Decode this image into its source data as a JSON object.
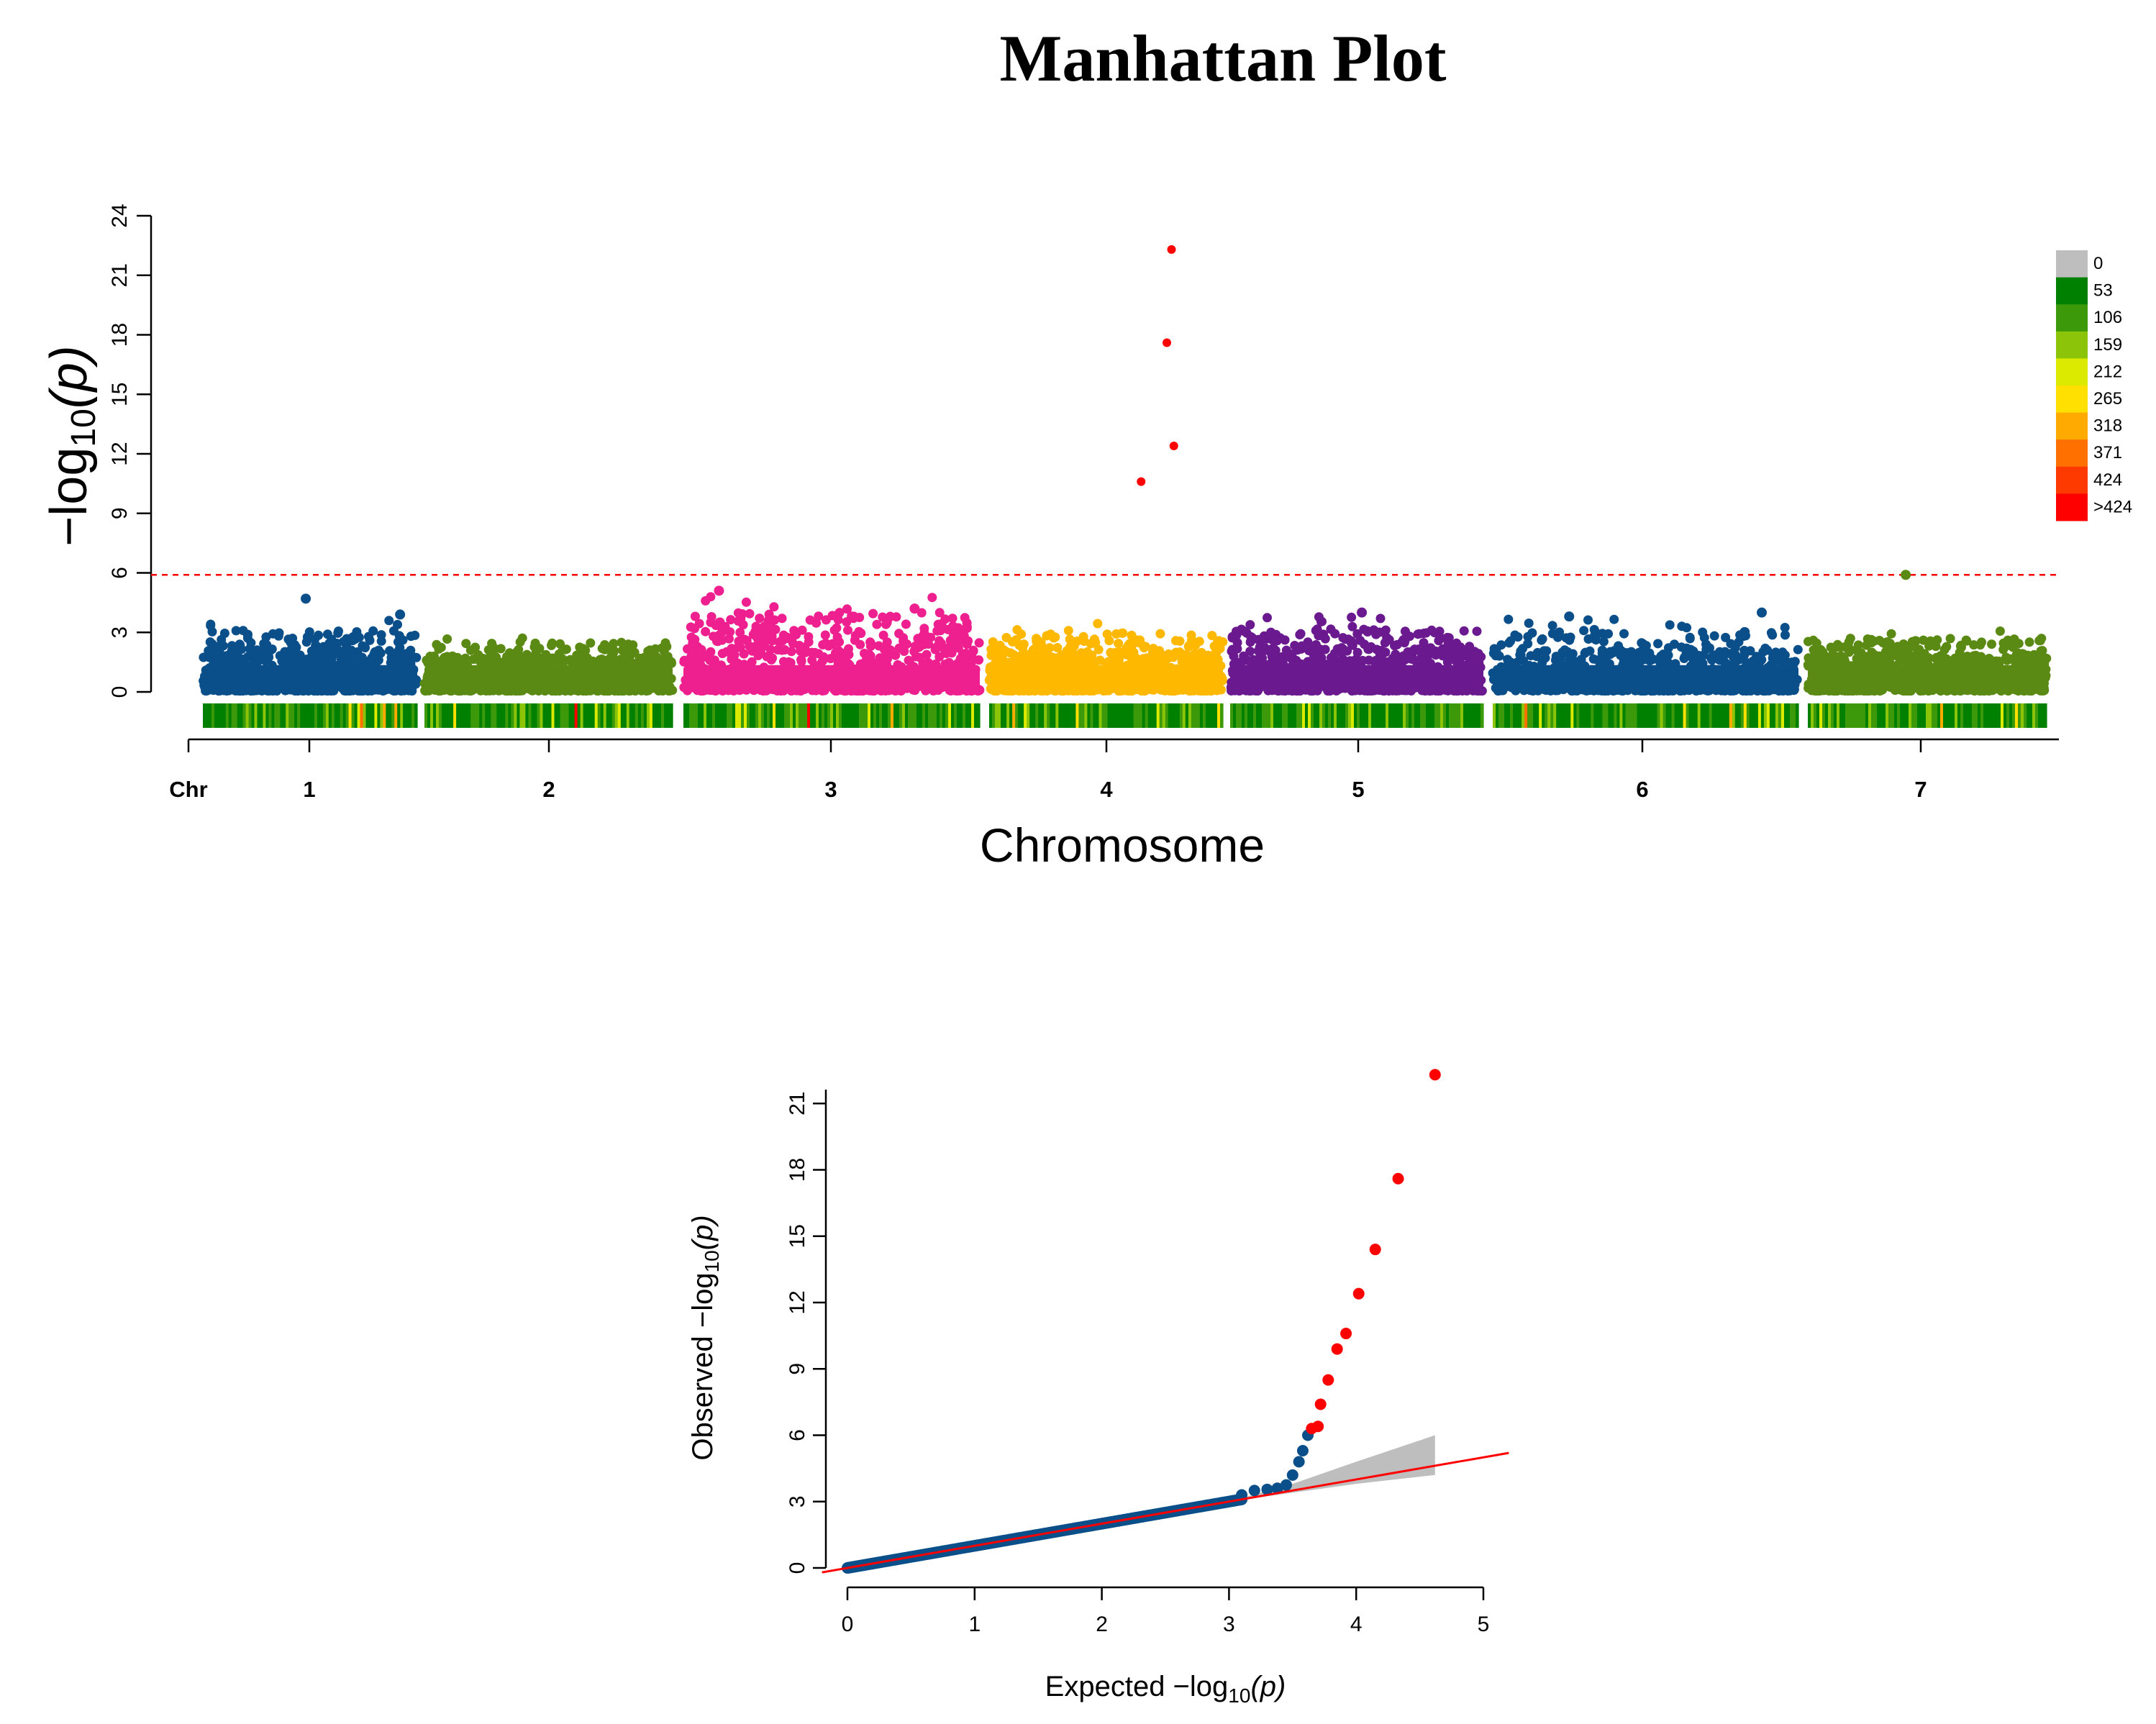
{
  "chart_data": [
    {
      "type": "scatter",
      "subtype": "manhattan",
      "title": "Manhattan Plot",
      "xlabel": "Chromosome",
      "ylabel_parts": {
        "prefix": "−log",
        "sub": "10",
        "suffix": "(p)"
      },
      "chr_label": "Chr",
      "ylim": [
        0,
        24
      ],
      "yticks": [
        0,
        3,
        6,
        9,
        12,
        15,
        18,
        21,
        24
      ],
      "threshold": 5.9,
      "threshold_color": "#ff0000",
      "chromosomes": [
        {
          "name": "1",
          "color": "#0b4f8a",
          "max_background": 3.9
        },
        {
          "name": "2",
          "color": "#5a8a14",
          "max_background": 3.1
        },
        {
          "name": "3",
          "color": "#ee1f8e",
          "max_background": 5.1
        },
        {
          "name": "4",
          "color": "#ffb800",
          "max_background": 3.7
        },
        {
          "name": "5",
          "color": "#6a1a8e",
          "max_background": 4.0
        },
        {
          "name": "6",
          "color": "#0b4f8a",
          "max_background": 3.9
        },
        {
          "name": "7",
          "color": "#5a8a14",
          "max_background": 3.4
        }
      ],
      "peaks": [
        {
          "chr": "1",
          "pos": 0.48,
          "value": 4.7
        },
        {
          "chr": "1",
          "pos": 0.92,
          "value": 3.9
        },
        {
          "chr": "3",
          "pos": 0.12,
          "value": 5.1
        },
        {
          "chr": "3",
          "pos": 0.78,
          "value": 4.2
        },
        {
          "chr": "5",
          "pos": 0.52,
          "value": 4.0
        },
        {
          "chr": "6",
          "pos": 0.25,
          "value": 3.8
        },
        {
          "chr": "6",
          "pos": 0.88,
          "value": 4.0
        },
        {
          "chr": "7",
          "pos": 0.41,
          "value": 5.9,
          "significant": true
        },
        {
          "chr": "4",
          "pos": 0.78,
          "value": 22.3,
          "significant": true
        },
        {
          "chr": "4",
          "pos": 0.76,
          "value": 17.6,
          "significant": true
        },
        {
          "chr": "4",
          "pos": 0.79,
          "value": 12.4,
          "significant": true
        },
        {
          "chr": "4",
          "pos": 0.65,
          "value": 10.6,
          "significant": true
        }
      ],
      "significant_color": "#ff0000",
      "density_legend": {
        "labels": [
          "0",
          "53",
          "106",
          "159",
          "212",
          "265",
          "318",
          "371",
          "424",
          ">424"
        ],
        "colors": [
          "#bebebe",
          "#008000",
          "#3c9a0a",
          "#8cc40a",
          "#dcea00",
          "#ffe000",
          "#ffaa00",
          "#ff7000",
          "#ff3a00",
          "#ff0000"
        ]
      }
    },
    {
      "type": "scatter",
      "subtype": "qq",
      "xlabel_parts": {
        "prefix": "Expected  −log",
        "sub": "10",
        "suffix": "(p)"
      },
      "ylabel_parts": {
        "prefix": "Observed  −log",
        "sub": "10",
        "suffix": "(p)"
      },
      "xlim": [
        0,
        5
      ],
      "ylim": [
        0,
        22
      ],
      "xticks": [
        0,
        1,
        2,
        3,
        4,
        5
      ],
      "yticks": [
        0,
        3,
        6,
        9,
        12,
        15,
        18,
        21
      ],
      "point_color": "#0b4f8a",
      "significant_color": "#ff0000",
      "points_tail": [
        {
          "x": 3.1,
          "y": 3.3
        },
        {
          "x": 3.2,
          "y": 3.5
        },
        {
          "x": 3.3,
          "y": 3.55
        },
        {
          "x": 3.38,
          "y": 3.6
        },
        {
          "x": 3.45,
          "y": 3.75
        },
        {
          "x": 3.5,
          "y": 4.2
        },
        {
          "x": 3.55,
          "y": 4.8
        },
        {
          "x": 3.58,
          "y": 5.3
        },
        {
          "x": 3.62,
          "y": 6.0
        }
      ],
      "significant_points": [
        {
          "x": 3.65,
          "y": 6.3
        },
        {
          "x": 3.7,
          "y": 6.4
        },
        {
          "x": 3.72,
          "y": 7.4
        },
        {
          "x": 3.78,
          "y": 8.5
        },
        {
          "x": 3.85,
          "y": 9.9
        },
        {
          "x": 3.92,
          "y": 10.6
        },
        {
          "x": 4.02,
          "y": 12.4
        },
        {
          "x": 4.15,
          "y": 14.4
        },
        {
          "x": 4.33,
          "y": 17.6
        },
        {
          "x": 4.62,
          "y": 22.3
        }
      ],
      "reference_line": {
        "x": [
          0,
          5.2
        ],
        "y": [
          0,
          5.2
        ],
        "color": "#ff0000"
      },
      "confidence_band": {
        "x": [
          3.0,
          3.5,
          4.0,
          4.62
        ],
        "lower": [
          3.0,
          3.4,
          3.8,
          4.2
        ],
        "upper": [
          3.0,
          3.8,
          4.8,
          6.0
        ],
        "color": "#bebebe"
      }
    }
  ]
}
